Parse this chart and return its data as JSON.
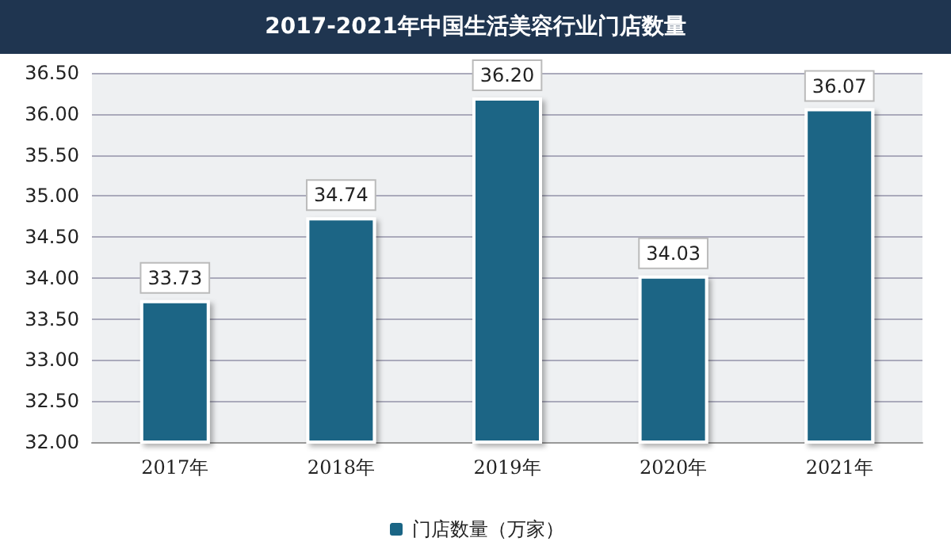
{
  "chart_data": {
    "type": "bar",
    "title": "2017-2021年中国生活美容行业门店数量",
    "categories": [
      "2017年",
      "2018年",
      "2019年",
      "2020年",
      "2021年"
    ],
    "series": [
      {
        "name": "门店数量（万家）",
        "color": "#1a6585",
        "values": [
          33.73,
          34.74,
          36.2,
          34.03,
          36.07
        ],
        "value_labels": [
          "33.73",
          "34.74",
          "36.20",
          "34.03",
          "36.07"
        ]
      }
    ],
    "ylim": [
      32,
      36.5
    ],
    "yticks": [
      {
        "value": 32,
        "label": "32.00"
      },
      {
        "value": 32.5,
        "label": "32.50"
      },
      {
        "value": 33,
        "label": "33.00"
      },
      {
        "value": 33.5,
        "label": "33.50"
      },
      {
        "value": 34,
        "label": "34.00"
      },
      {
        "value": 34.5,
        "label": "34.50"
      },
      {
        "value": 35,
        "label": "35.00"
      },
      {
        "value": 35.5,
        "label": "35.50"
      },
      {
        "value": 36,
        "label": "36.00"
      },
      {
        "value": 36.5,
        "label": "36.50"
      }
    ],
    "grid": "y",
    "legend": "bottom"
  }
}
